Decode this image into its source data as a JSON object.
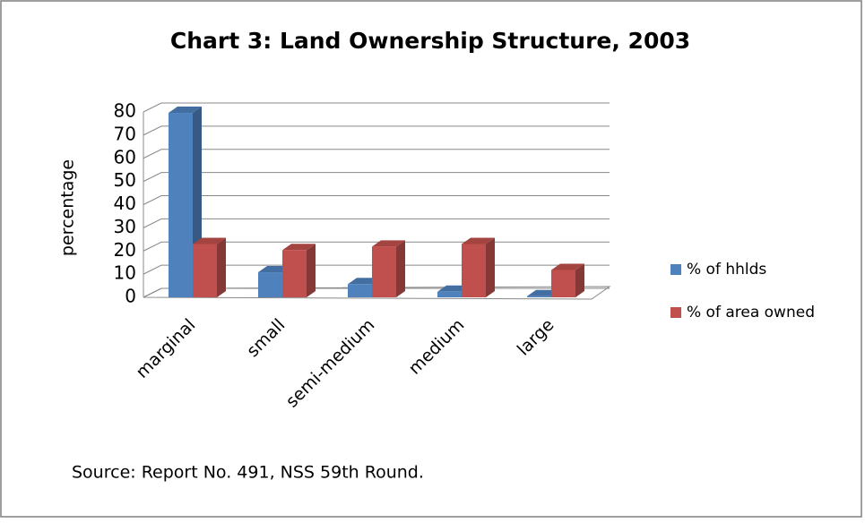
{
  "chart_data": {
    "type": "bar3d",
    "title": "Chart 3: Land Ownership Structure, 2003",
    "y_label": "percentage",
    "categories": [
      "marginal",
      "small",
      "semi-medium",
      "medium",
      "large"
    ],
    "series": [
      {
        "name": "% of hhlds",
        "color": "#4f81bd",
        "values": [
          79.6,
          10.8,
          5.7,
          2.4,
          0.5
        ]
      },
      {
        "name": "% of area owned",
        "color": "#c0504d",
        "values": [
          23.0,
          20.4,
          21.9,
          23.0,
          11.8
        ]
      }
    ],
    "ylim": [
      0,
      80
    ],
    "yticks": [
      0,
      10,
      20,
      30,
      40,
      50,
      60,
      70,
      80
    ],
    "grid": true,
    "legend": "right",
    "source": "Source: Report  No. 491, NSS 59th Round."
  }
}
